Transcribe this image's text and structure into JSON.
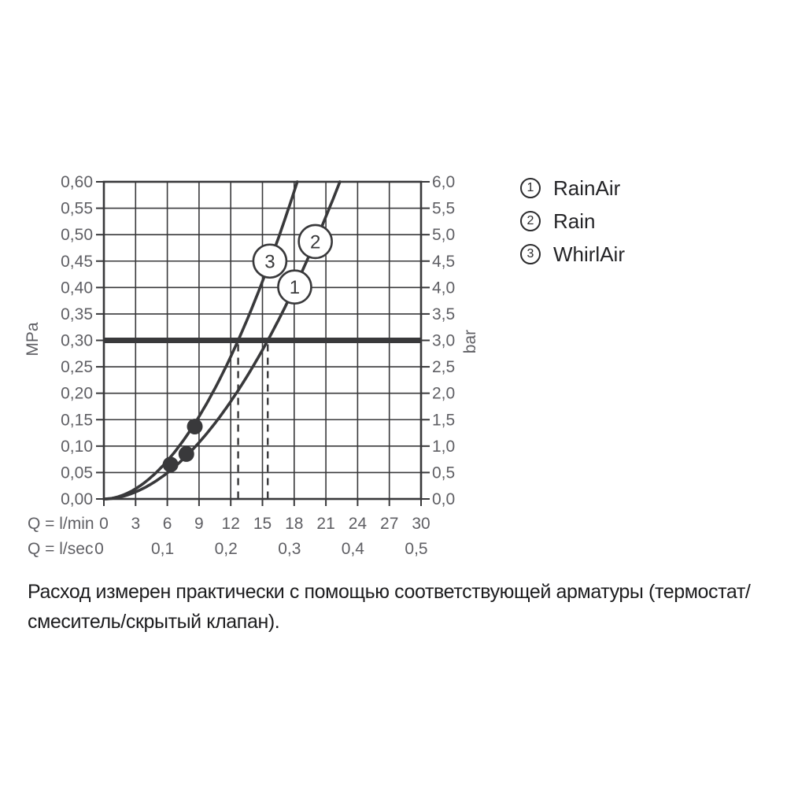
{
  "colors": {
    "background": "#ffffff",
    "line": "#39393b",
    "axis_text": "#5f5f64",
    "legend_text": "#242427",
    "footnote_text": "#1d1d1f",
    "marker_fill": "#ffffff"
  },
  "legend": {
    "items": [
      {
        "number": "1",
        "label": "RainAir"
      },
      {
        "number": "2",
        "label": "Rain"
      },
      {
        "number": "3",
        "label": "WhirlAir"
      }
    ]
  },
  "footnote": {
    "line1": "Расход измерен практически с помощью соответствующей арматуры (термостат/",
    "line2": "смеситель/скрытый клапан)."
  },
  "chart_data": {
    "type": "line",
    "title": "",
    "grid": true,
    "legend_position": "right",
    "x_axis": {
      "label_primary": "Q = l/min",
      "ticks_lmin": [
        "0",
        "3",
        "6",
        "9",
        "12",
        "15",
        "18",
        "21",
        "24",
        "27",
        "30"
      ],
      "label_secondary": "Q = l/sec",
      "ticks_lsec": [
        "0",
        "0,1",
        "0,2",
        "0,3",
        "0,4",
        "0,5"
      ],
      "range_lmin": [
        0,
        30
      ],
      "grid_step_lmin": 3
    },
    "y_axis_left": {
      "label": "MPa",
      "ticks": [
        "0,60",
        "0,55",
        "0,50",
        "0,45",
        "0,40",
        "0,35",
        "0,30",
        "0,25",
        "0,20",
        "0,15",
        "0,10",
        "0,05",
        "0,00"
      ],
      "range_mpa": [
        0,
        0.6
      ],
      "grid_step_mpa": 0.05
    },
    "y_axis_right": {
      "label": "bar",
      "ticks": [
        "6,0",
        "5,5",
        "5,0",
        "4,5",
        "4,0",
        "3,5",
        "3,0",
        "2,5",
        "2,0",
        "1,5",
        "1,0",
        "0,5",
        "0,0"
      ],
      "range_bar": [
        0,
        6
      ]
    },
    "reference_line_mpa": 0.3,
    "dashed_lines_lmin": [
      12.7,
      15.5
    ],
    "curves": [
      {
        "id": "rain-rainair",
        "series_labels": [
          "1",
          "2"
        ],
        "names": [
          "RainAir",
          "Rain"
        ],
        "q_at_3bar_lmin": 15.5,
        "exponent": 1.9,
        "points_q_mpa": [
          [
            0,
            0
          ],
          [
            3,
            0.013
          ],
          [
            6,
            0.049
          ],
          [
            9,
            0.107
          ],
          [
            12,
            0.184
          ],
          [
            15,
            0.281
          ],
          [
            15.5,
            0.3
          ],
          [
            18,
            0.399
          ],
          [
            20,
            0.487
          ],
          [
            21,
            0.534
          ],
          [
            22.3,
            0.6
          ]
        ]
      },
      {
        "id": "whirlair",
        "series_labels": [
          "3"
        ],
        "names": [
          "WhirlAir"
        ],
        "q_at_3bar_lmin": 12.7,
        "exponent": 1.9,
        "points_q_mpa": [
          [
            0,
            0
          ],
          [
            3,
            0.019
          ],
          [
            6,
            0.072
          ],
          [
            9,
            0.156
          ],
          [
            12,
            0.268
          ],
          [
            12.7,
            0.3
          ],
          [
            15,
            0.412
          ],
          [
            17,
            0.522
          ],
          [
            18.3,
            0.6
          ]
        ]
      }
    ],
    "markers": [
      {
        "label": "1",
        "q_lmin": 18.05,
        "mpa": 0.401
      },
      {
        "label": "2",
        "q_lmin": 20.0,
        "mpa": 0.487
      },
      {
        "label": "3",
        "q_lmin": 15.7,
        "mpa": 0.45
      }
    ],
    "dots": [
      {
        "q_lmin": 6.3,
        "mpa": 0.065
      },
      {
        "q_lmin": 7.8,
        "mpa": 0.085
      },
      {
        "q_lmin": 8.6,
        "mpa": 0.137
      }
    ]
  }
}
